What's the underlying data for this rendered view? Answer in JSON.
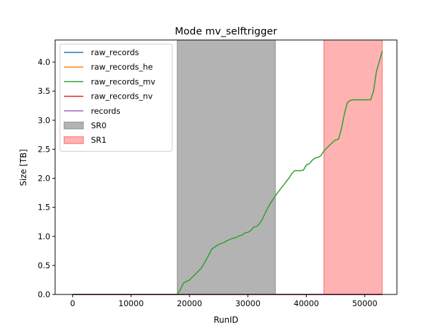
{
  "chart_data": {
    "type": "line",
    "title": "Mode mv_selftrigger",
    "xlabel": "RunID",
    "ylabel": "Size [TB]",
    "xlim": [
      -3000,
      55500
    ],
    "ylim": [
      0,
      4.38
    ],
    "xticks": [
      0,
      10000,
      20000,
      30000,
      40000,
      50000
    ],
    "yticks": [
      0.0,
      0.5,
      1.0,
      1.5,
      2.0,
      2.5,
      3.0,
      3.5,
      4.0
    ],
    "xtick_labels": [
      "0",
      "10000",
      "20000",
      "30000",
      "40000",
      "50000"
    ],
    "ytick_labels": [
      "0.0",
      "0.5",
      "1.0",
      "1.5",
      "2.0",
      "2.5",
      "3.0",
      "3.5",
      "4.0"
    ],
    "grid": false,
    "legend_position": "top-left",
    "series": [
      {
        "name": "raw_records",
        "color": "#1f77b4",
        "x": [
          0,
          53000
        ],
        "y": [
          0,
          0
        ]
      },
      {
        "name": "raw_records_he",
        "color": "#ff7f0e",
        "x": [
          0,
          53000
        ],
        "y": [
          0,
          0
        ]
      },
      {
        "name": "raw_records_mv",
        "color": "#2ca02c",
        "x": [
          0,
          17900,
          18300,
          19000,
          20000,
          21000,
          22000,
          23000,
          23800,
          24500,
          25000,
          25500,
          26000,
          26500,
          27000,
          27500,
          28000,
          28500,
          29000,
          29500,
          30000,
          30500,
          31000,
          31500,
          32000,
          32500,
          33000,
          33500,
          34000,
          34500,
          35000,
          36000,
          37000,
          37500,
          38000,
          38500,
          39000,
          39500,
          40000,
          40500,
          41000,
          41500,
          42000,
          42500,
          43000,
          43300,
          43800,
          44500,
          45000,
          45500,
          46000,
          46500,
          47000,
          47500,
          48000,
          49000,
          50000,
          51000,
          51500,
          52000,
          53000
        ],
        "y": [
          0,
          0,
          0.06,
          0.2,
          0.25,
          0.35,
          0.45,
          0.62,
          0.78,
          0.83,
          0.86,
          0.88,
          0.9,
          0.93,
          0.95,
          0.97,
          0.98,
          1.01,
          1.02,
          1.06,
          1.07,
          1.1,
          1.16,
          1.17,
          1.22,
          1.3,
          1.41,
          1.51,
          1.59,
          1.67,
          1.74,
          1.87,
          2.0,
          2.08,
          2.13,
          2.13,
          2.13,
          2.14,
          2.23,
          2.25,
          2.31,
          2.35,
          2.36,
          2.39,
          2.47,
          2.5,
          2.55,
          2.62,
          2.66,
          2.67,
          2.85,
          3.1,
          3.3,
          3.34,
          3.35,
          3.35,
          3.35,
          3.35,
          3.5,
          3.84,
          4.19
        ]
      },
      {
        "name": "raw_records_nv",
        "color": "#d62728",
        "x": [
          0,
          53000
        ],
        "y": [
          0,
          0
        ]
      },
      {
        "name": "records",
        "color": "#9467bd",
        "x": [
          0,
          53000
        ],
        "y": [
          0,
          0
        ]
      }
    ],
    "spans": [
      {
        "name": "SR0",
        "x0": 17900,
        "x1": 34700,
        "color": "#808080",
        "alpha": 0.6
      },
      {
        "name": "SR1",
        "x0": 43000,
        "x1": 53000,
        "color": "#ff0000",
        "alpha": 0.3
      }
    ]
  }
}
